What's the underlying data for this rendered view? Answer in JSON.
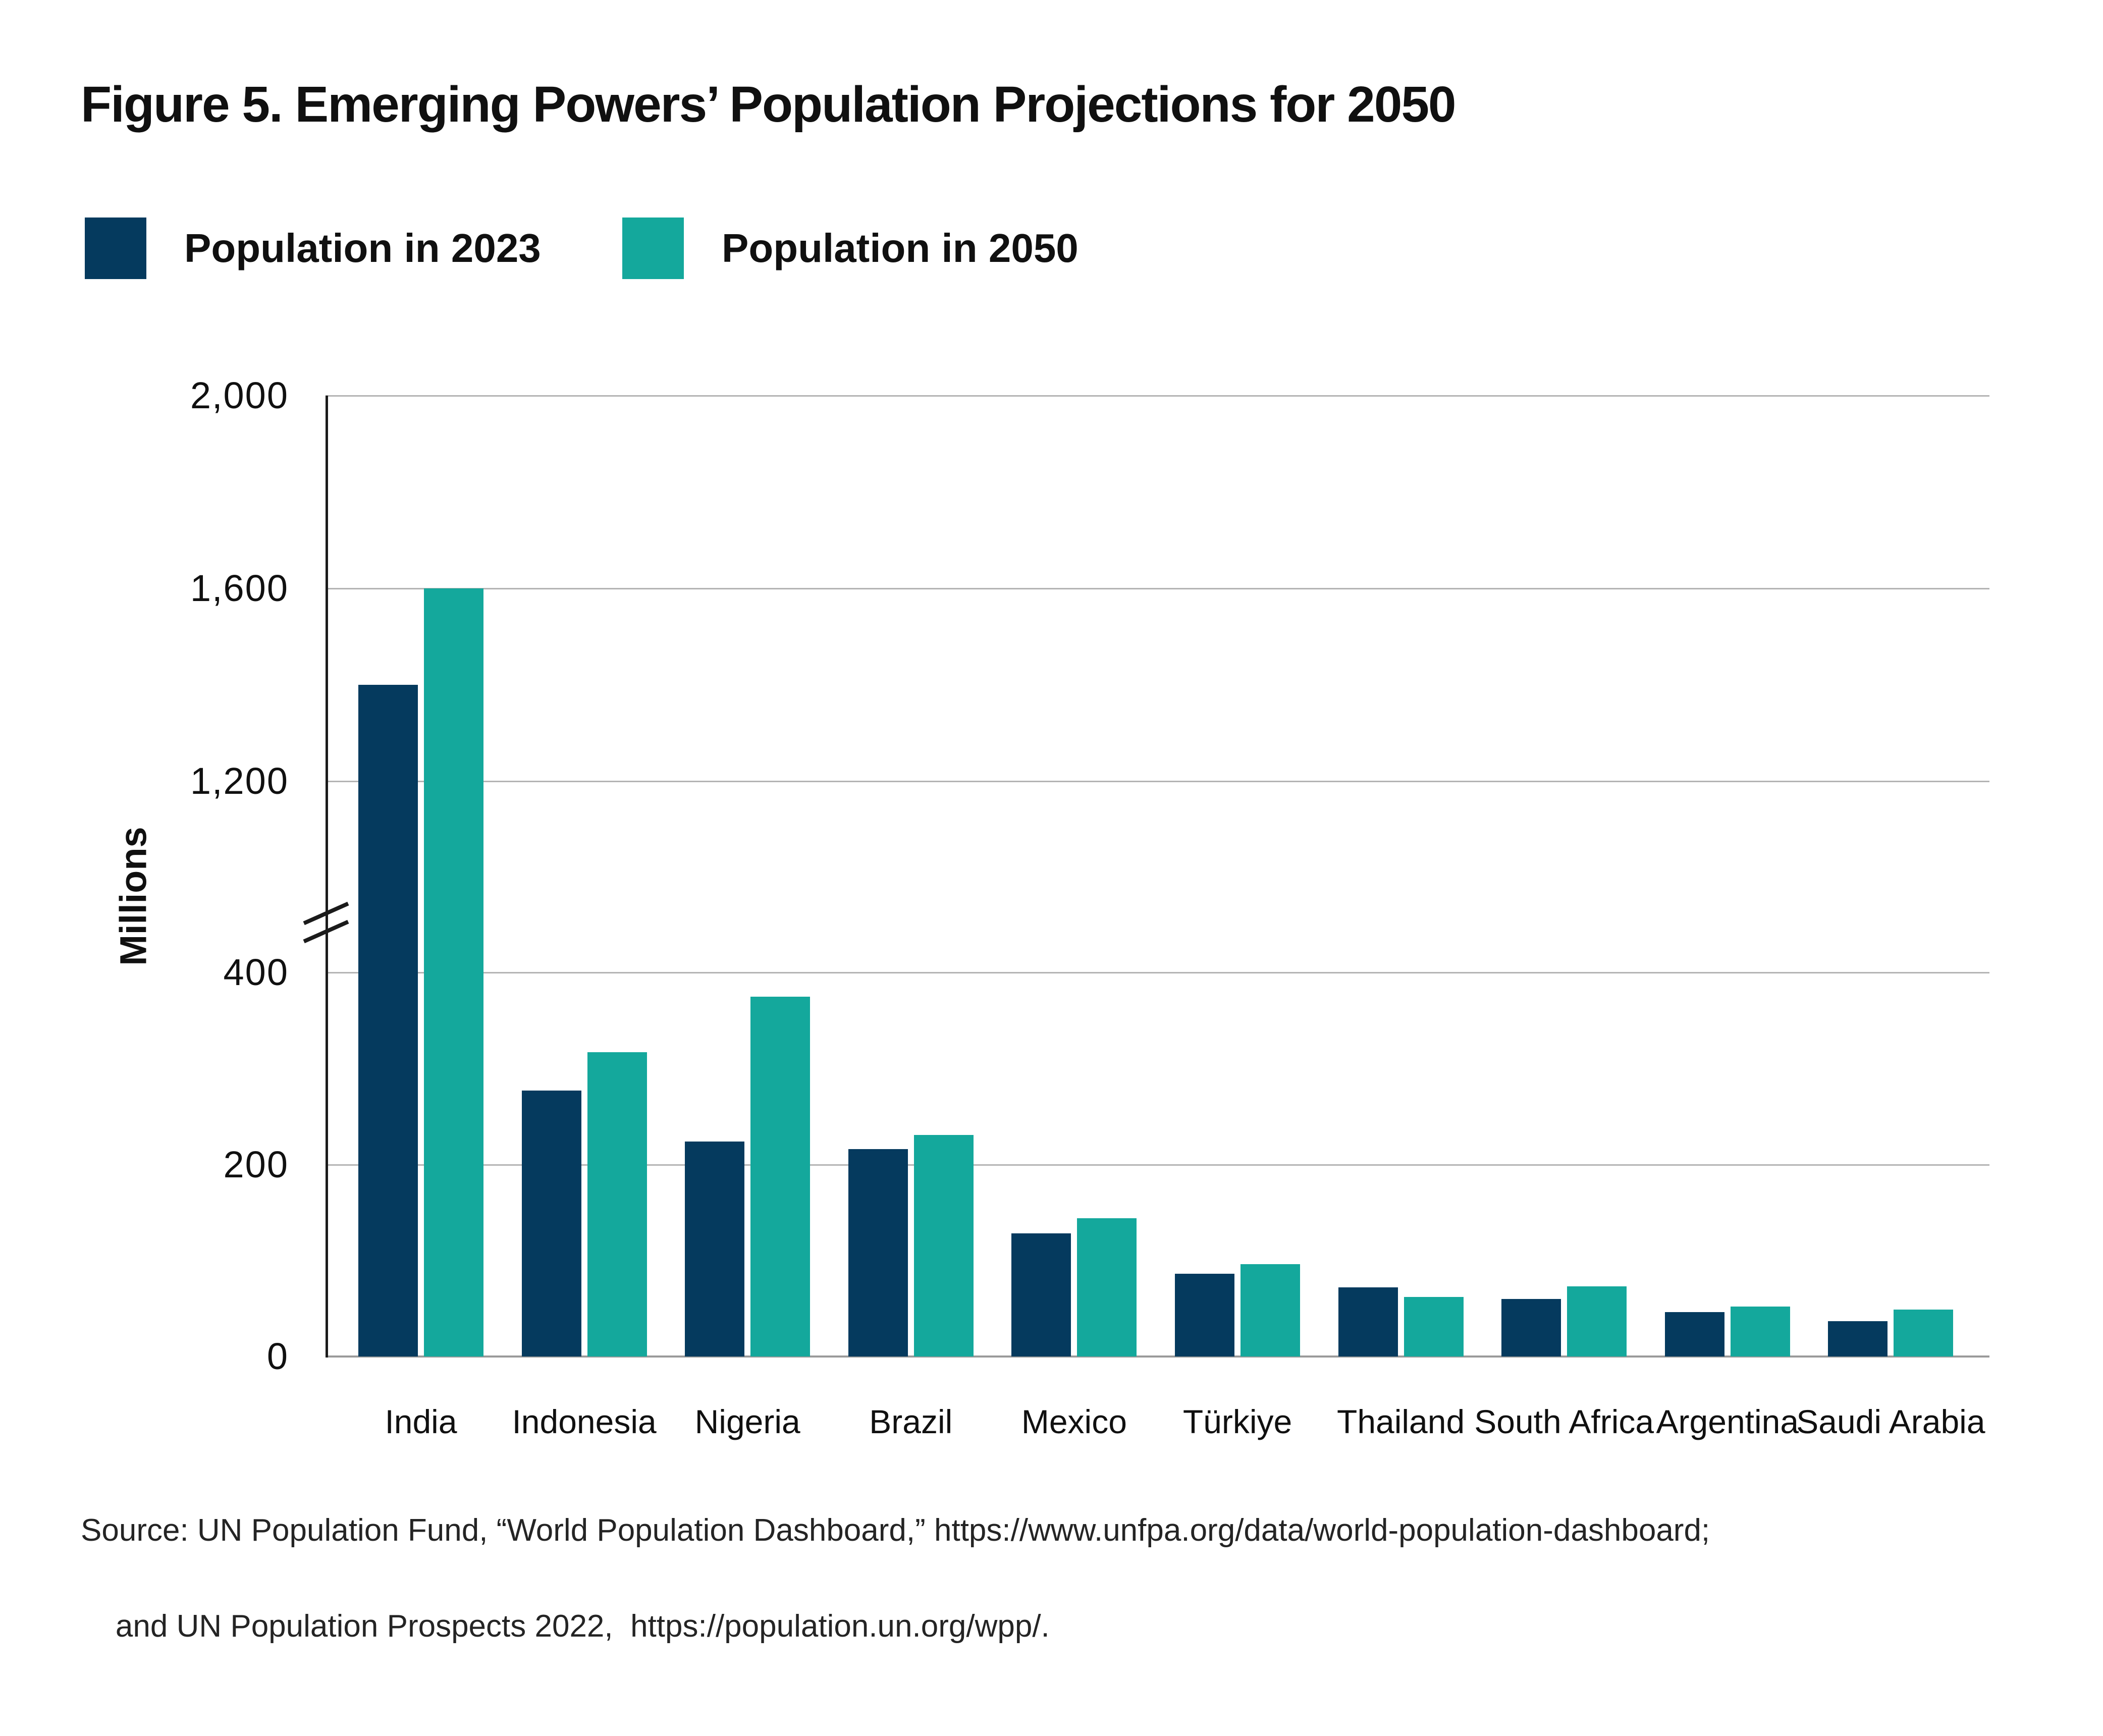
{
  "figure": {
    "title": "Figure 5. Emerging Powers’ Population Projections for 2050",
    "source_line1": "Source: UN Population Fund, “World Population Dashboard,” https://www.unfpa.org/data/world-population-dashboard;",
    "source_line2": "and UN Population Prospects 2022,  https://population.un.org/wpp/."
  },
  "legend": {
    "items": [
      {
        "label": "Population in 2023",
        "color": "#053a5e"
      },
      {
        "label": "Population in 2050",
        "color": "#14a89c"
      }
    ]
  },
  "chart_data": {
    "type": "bar",
    "title": "Figure 5. Emerging Powers’ Population Projections for 2050",
    "ylabel": "Millions",
    "unit": "millions of people",
    "categories": [
      "India",
      "Indonesia",
      "Nigeria",
      "Brazil",
      "Mexico",
      "Türkiye",
      "Thailand",
      "South Africa",
      "Argentina",
      "Saudi Arabia"
    ],
    "series": [
      {
        "name": "Population in 2023",
        "color": "#053a5e",
        "values": [
          1400,
          277,
          224,
          216,
          128,
          86,
          72,
          60,
          46,
          37
        ]
      },
      {
        "name": "Population in 2050",
        "color": "#14a89c",
        "values": [
          1600,
          317,
          375,
          231,
          144,
          96,
          62,
          73,
          52,
          49
        ]
      }
    ],
    "y_axis": {
      "ticks": [
        {
          "label": "0",
          "value": 0
        },
        {
          "label": "200",
          "value": 200
        },
        {
          "label": "400",
          "value": 400
        },
        {
          "label": "1,200",
          "value": 1200
        },
        {
          "label": "1,600",
          "value": 1600
        },
        {
          "label": "2,000",
          "value": 2000
        }
      ],
      "break_between": [
        400,
        1200
      ],
      "lower_max": 400,
      "upper_min": 1200,
      "upper_max": 2000
    },
    "grid": true,
    "legend_position": "top-left"
  }
}
